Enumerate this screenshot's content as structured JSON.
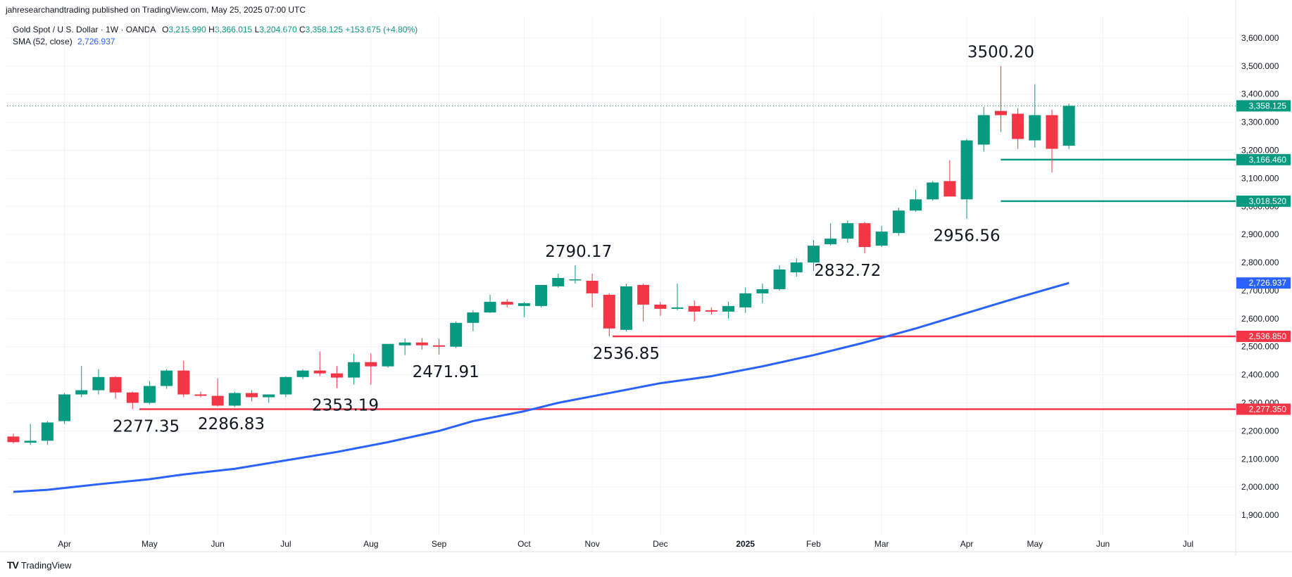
{
  "header": {
    "publisher_line": "jahresearchandtrading published on TradingView.com, May 25, 2025 07:00 UTC"
  },
  "legend": {
    "symbol_line": "Gold Spot / U.S. Dollar · 1W · OANDA",
    "open_label": "O",
    "open_value": "3,215.990",
    "high_label": "H",
    "high_value": "3,366.015",
    "low_label": "L",
    "low_value": "3,204.670",
    "close_label": "C",
    "close_value": "3,358.125",
    "change_value": "+153.675 (+4.80%)",
    "sma_label": "SMA (52, close)",
    "sma_value": "2,726.937"
  },
  "footer": {
    "logo_text": "TV",
    "brand": "TradingView"
  },
  "colors": {
    "up": "#089981",
    "down": "#f23645",
    "sma": "#2962ff",
    "grid": "#f0f3fa",
    "support": "#f23645",
    "target": "#089981"
  },
  "chart_data": {
    "type": "candlestick",
    "symbol": "Gold Spot / U.S. Dollar",
    "interval": "1W",
    "ylim": [
      1830,
      3680
    ],
    "y_ticks": [
      1900,
      2000,
      2100,
      2200,
      2300,
      2400,
      2500,
      2600,
      2700,
      2800,
      2900,
      3000,
      3100,
      3200,
      3300,
      3400,
      3500,
      3600
    ],
    "y_tick_labels": [
      "1,900.000",
      "2,000.000",
      "2,100.000",
      "2,200.000",
      "2,300.000",
      "2,400.000",
      "2,500.000",
      "2,600.000",
      "2,700.000",
      "2,800.000",
      "2,900.000",
      "3,000.000",
      "3,100.000",
      "3,200.000",
      "3,300.000",
      "3,400.000",
      "3,500.000",
      "3,600.000"
    ],
    "x_ticks": [
      {
        "i": 3,
        "label": "Apr",
        "bold": false
      },
      {
        "i": 8,
        "label": "May",
        "bold": false
      },
      {
        "i": 12,
        "label": "Jun",
        "bold": false
      },
      {
        "i": 16,
        "label": "Jul",
        "bold": false
      },
      {
        "i": 21,
        "label": "Aug",
        "bold": false
      },
      {
        "i": 25,
        "label": "Sep",
        "bold": false
      },
      {
        "i": 30,
        "label": "Oct",
        "bold": false
      },
      {
        "i": 34,
        "label": "Nov",
        "bold": false
      },
      {
        "i": 38,
        "label": "Dec",
        "bold": false
      },
      {
        "i": 43,
        "label": "2025",
        "bold": true
      },
      {
        "i": 47,
        "label": "Feb",
        "bold": false
      },
      {
        "i": 51,
        "label": "Mar",
        "bold": false
      },
      {
        "i": 56,
        "label": "Apr",
        "bold": false
      },
      {
        "i": 60,
        "label": "May",
        "bold": false
      },
      {
        "i": 64,
        "label": "Jun",
        "bold": false
      },
      {
        "i": 69,
        "label": "Jul",
        "bold": false
      }
    ],
    "candles": [
      {
        "o": 2180,
        "h": 2190,
        "l": 2155,
        "c": 2160
      },
      {
        "o": 2158,
        "h": 2225,
        "l": 2150,
        "c": 2165
      },
      {
        "o": 2165,
        "h": 2235,
        "l": 2150,
        "c": 2230
      },
      {
        "o": 2235,
        "h": 2335,
        "l": 2225,
        "c": 2330
      },
      {
        "o": 2330,
        "h": 2432,
        "l": 2320,
        "c": 2345
      },
      {
        "o": 2345,
        "h": 2420,
        "l": 2330,
        "c": 2392
      },
      {
        "o": 2392,
        "h": 2395,
        "l": 2315,
        "c": 2337
      },
      {
        "o": 2337,
        "h": 2340,
        "l": 2277.35,
        "c": 2300
      },
      {
        "o": 2300,
        "h": 2378,
        "l": 2295,
        "c": 2360
      },
      {
        "o": 2360,
        "h": 2420,
        "l": 2350,
        "c": 2415
      },
      {
        "o": 2415,
        "h": 2450,
        "l": 2320,
        "c": 2330
      },
      {
        "o": 2330,
        "h": 2340,
        "l": 2320,
        "c": 2325
      },
      {
        "o": 2325,
        "h": 2387,
        "l": 2286.83,
        "c": 2290
      },
      {
        "o": 2290,
        "h": 2340,
        "l": 2285,
        "c": 2335
      },
      {
        "o": 2335,
        "h": 2345,
        "l": 2305,
        "c": 2320
      },
      {
        "o": 2320,
        "h": 2330,
        "l": 2300,
        "c": 2330
      },
      {
        "o": 2330,
        "h": 2395,
        "l": 2320,
        "c": 2392
      },
      {
        "o": 2392,
        "h": 2420,
        "l": 2385,
        "c": 2415
      },
      {
        "o": 2415,
        "h": 2483,
        "l": 2395,
        "c": 2405
      },
      {
        "o": 2405,
        "h": 2430,
        "l": 2353.19,
        "c": 2390
      },
      {
        "o": 2390,
        "h": 2475,
        "l": 2365,
        "c": 2445
      },
      {
        "o": 2445,
        "h": 2477,
        "l": 2365,
        "c": 2430
      },
      {
        "o": 2430,
        "h": 2510,
        "l": 2425,
        "c": 2510
      },
      {
        "o": 2505,
        "h": 2530,
        "l": 2470,
        "c": 2515
      },
      {
        "o": 2515,
        "h": 2531,
        "l": 2490,
        "c": 2505
      },
      {
        "o": 2505,
        "h": 2528,
        "l": 2471.91,
        "c": 2500
      },
      {
        "o": 2500,
        "h": 2590,
        "l": 2495,
        "c": 2585
      },
      {
        "o": 2585,
        "h": 2630,
        "l": 2555,
        "c": 2622
      },
      {
        "o": 2622,
        "h": 2685,
        "l": 2620,
        "c": 2660
      },
      {
        "o": 2660,
        "h": 2670,
        "l": 2640,
        "c": 2650
      },
      {
        "o": 2645,
        "h": 2660,
        "l": 2605,
        "c": 2655
      },
      {
        "o": 2645,
        "h": 2720,
        "l": 2640,
        "c": 2720
      },
      {
        "o": 2715,
        "h": 2760,
        "l": 2710,
        "c": 2745
      },
      {
        "o": 2740,
        "h": 2790.17,
        "l": 2725,
        "c": 2740
      },
      {
        "o": 2735,
        "h": 2760,
        "l": 2640,
        "c": 2690
      },
      {
        "o": 2685,
        "h": 2690,
        "l": 2536.85,
        "c": 2565
      },
      {
        "o": 2560,
        "h": 2725,
        "l": 2555,
        "c": 2715
      },
      {
        "o": 2720,
        "h": 2725,
        "l": 2590,
        "c": 2650
      },
      {
        "o": 2650,
        "h": 2660,
        "l": 2610,
        "c": 2635
      },
      {
        "o": 2635,
        "h": 2725,
        "l": 2630,
        "c": 2640
      },
      {
        "o": 2645,
        "h": 2665,
        "l": 2590,
        "c": 2625
      },
      {
        "o": 2630,
        "h": 2640,
        "l": 2615,
        "c": 2625
      },
      {
        "o": 2625,
        "h": 2660,
        "l": 2600,
        "c": 2645
      },
      {
        "o": 2640,
        "h": 2710,
        "l": 2620,
        "c": 2690
      },
      {
        "o": 2690,
        "h": 2725,
        "l": 2655,
        "c": 2705
      },
      {
        "o": 2705,
        "h": 2790,
        "l": 2700,
        "c": 2775
      },
      {
        "o": 2765,
        "h": 2815,
        "l": 2750,
        "c": 2800
      },
      {
        "o": 2800,
        "h": 2880,
        "l": 2770,
        "c": 2860
      },
      {
        "o": 2865,
        "h": 2940,
        "l": 2860,
        "c": 2885
      },
      {
        "o": 2885,
        "h": 2950,
        "l": 2870,
        "c": 2940
      },
      {
        "o": 2940,
        "h": 2945,
        "l": 2832.72,
        "c": 2855
      },
      {
        "o": 2860,
        "h": 2930,
        "l": 2855,
        "c": 2910
      },
      {
        "o": 2905,
        "h": 2995,
        "l": 2895,
        "c": 2985
      },
      {
        "o": 2985,
        "h": 3060,
        "l": 2980,
        "c": 3025
      },
      {
        "o": 3025,
        "h": 3090,
        "l": 3020,
        "c": 3085
      },
      {
        "o": 3090,
        "h": 3165,
        "l": 3040,
        "c": 3035
      },
      {
        "o": 3025,
        "h": 3240,
        "l": 2956.56,
        "c": 3235
      },
      {
        "o": 3220,
        "h": 3355,
        "l": 3195,
        "c": 3325
      },
      {
        "o": 3340,
        "h": 3500.2,
        "l": 3265,
        "c": 3325
      },
      {
        "o": 3330,
        "h": 3350,
        "l": 3205,
        "c": 3240
      },
      {
        "o": 3235,
        "h": 3435,
        "l": 3210,
        "c": 3325
      },
      {
        "o": 3325,
        "h": 3345,
        "l": 3120,
        "c": 3205
      },
      {
        "o": 3215.99,
        "h": 3366.015,
        "l": 3204.67,
        "c": 3358.125
      }
    ],
    "sma": {
      "name": "SMA (52, close)",
      "points": [
        [
          0,
          1983
        ],
        [
          2,
          1990
        ],
        [
          5,
          2010
        ],
        [
          8,
          2028
        ],
        [
          10,
          2045
        ],
        [
          13,
          2065
        ],
        [
          16,
          2095
        ],
        [
          19,
          2125
        ],
        [
          22,
          2160
        ],
        [
          25,
          2200
        ],
        [
          27,
          2235
        ],
        [
          30,
          2270
        ],
        [
          32,
          2300
        ],
        [
          35,
          2335
        ],
        [
          38,
          2370
        ],
        [
          41,
          2395
        ],
        [
          44,
          2430
        ],
        [
          47,
          2470
        ],
        [
          50,
          2515
        ],
        [
          53,
          2565
        ],
        [
          56,
          2620
        ],
        [
          59,
          2675
        ],
        [
          62,
          2726.937
        ]
      ]
    },
    "annotations": [
      {
        "i": 7.8,
        "value": 2277.35,
        "label": "2277.35",
        "pos": "below"
      },
      {
        "i": 12.8,
        "value": 2286.83,
        "label": "2286.83",
        "pos": "below"
      },
      {
        "i": 19.5,
        "value": 2353.19,
        "label": "2353.19",
        "pos": "below"
      },
      {
        "i": 25.4,
        "value": 2471.91,
        "label": "2471.91",
        "pos": "below"
      },
      {
        "i": 33.2,
        "value": 2790.17,
        "label": "2790.17",
        "pos": "above"
      },
      {
        "i": 36.0,
        "value": 2536.85,
        "label": "2536.85",
        "pos": "below"
      },
      {
        "i": 49.0,
        "value": 2832.72,
        "label": "2832.72",
        "pos": "below"
      },
      {
        "i": 56.0,
        "value": 2956.56,
        "label": "2956.56",
        "pos": "below"
      },
      {
        "i": 58.0,
        "value": 3500.2,
        "label": "3500.20",
        "pos": "above"
      }
    ],
    "hlines": [
      {
        "value": 2277.35,
        "from_i": 7.4,
        "color": "#f23645",
        "label": "2,277.350"
      },
      {
        "value": 2536.85,
        "from_i": 35.2,
        "color": "#f23645",
        "label": "2,536.850"
      },
      {
        "value": 3166.46,
        "from_i": 58.0,
        "color": "#089981",
        "label": "3,166.460"
      },
      {
        "value": 3018.52,
        "from_i": 58.0,
        "color": "#089981",
        "label": "3,018.520"
      }
    ],
    "last_price": {
      "value": 3358.125,
      "label": "3,358.125",
      "color": "#089981"
    },
    "sma_price": {
      "value": 2726.937,
      "label": "2,726.937",
      "color": "#2962ff"
    }
  }
}
